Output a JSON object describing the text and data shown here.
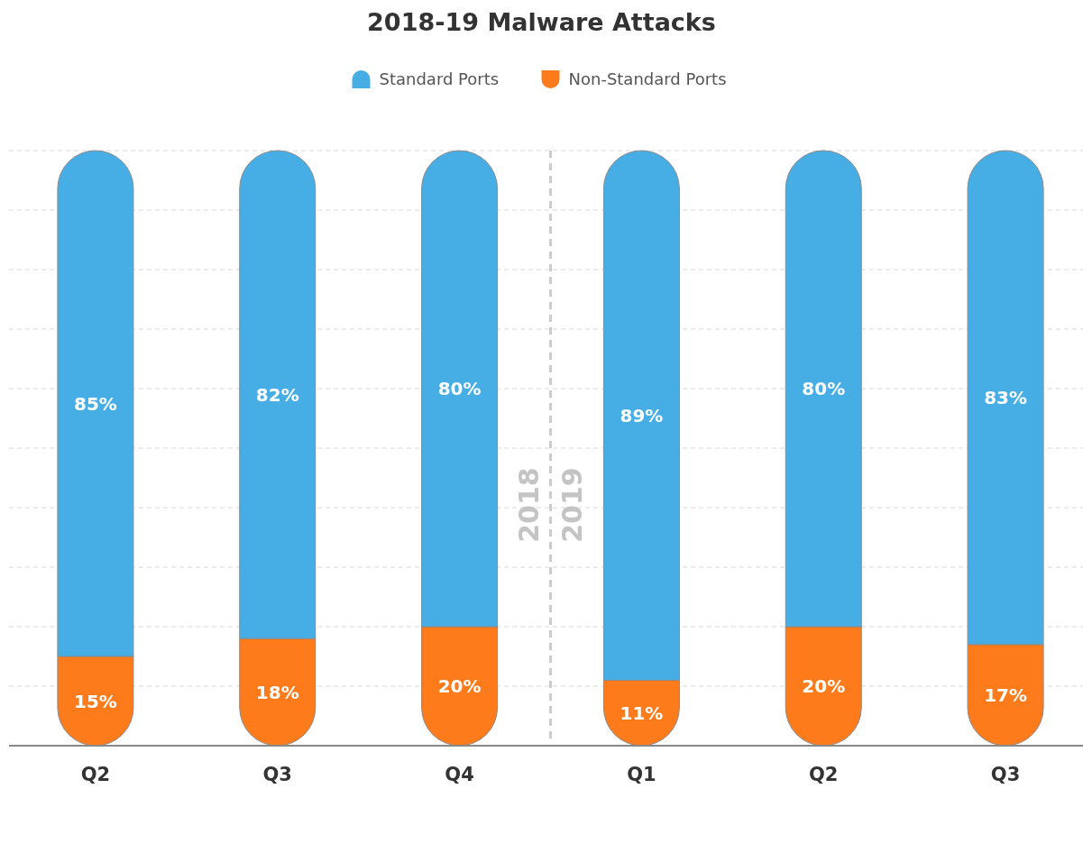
{
  "chart_data": {
    "type": "bar",
    "title": "2018-19 Malware Attacks",
    "categories": [
      "Q2",
      "Q3",
      "Q4",
      "Q1",
      "Q2",
      "Q3"
    ],
    "stacked": true,
    "series": [
      {
        "name": "Non-Standard Ports",
        "color": "#fe7b1b",
        "values": [
          15,
          18,
          20,
          11,
          20,
          17
        ],
        "value_labels": [
          "15%",
          "18%",
          "20%",
          "11%",
          "20%",
          "17%"
        ]
      },
      {
        "name": "Standard Ports",
        "color": "#46aee4",
        "values": [
          85,
          82,
          80,
          89,
          80,
          83
        ],
        "value_labels": [
          "85%",
          "82%",
          "80%",
          "89%",
          "80%",
          "83%"
        ]
      }
    ],
    "ylim": [
      0,
      100
    ],
    "yticks": [
      {
        "value": 0,
        "label": null
      },
      {
        "value": 10,
        "label": null
      },
      {
        "value": 20,
        "label": null
      },
      {
        "value": 30,
        "label": null
      },
      {
        "value": 40,
        "label": null
      },
      {
        "value": 50,
        "label": null
      },
      {
        "value": 60,
        "label": null
      },
      {
        "value": 70,
        "label": null
      },
      {
        "value": 80,
        "label": null
      },
      {
        "value": 90,
        "label": null
      },
      {
        "value": 100,
        "label": null
      }
    ],
    "grid": "y",
    "legend": "top",
    "annotations": [
      "2018",
      "2019"
    ]
  }
}
